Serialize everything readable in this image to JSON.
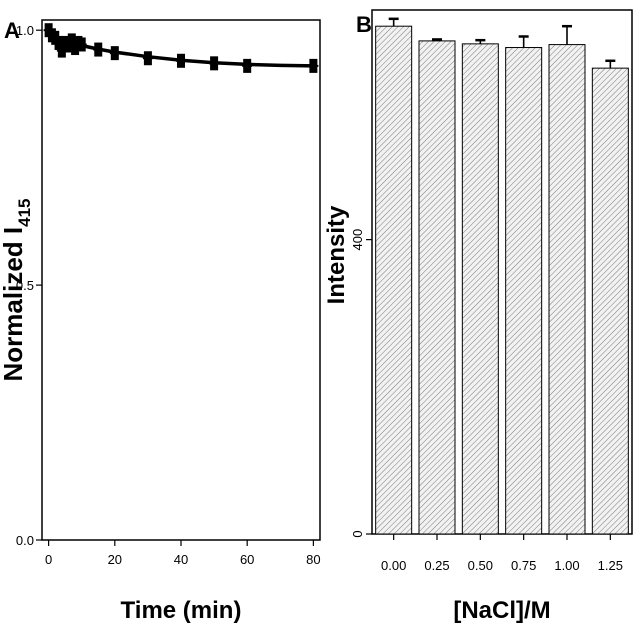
{
  "chart_data": [
    {
      "panel_label": "A",
      "type": "scatter",
      "xlabel": "Time (min)",
      "ylabel": "Normalized I",
      "ylabel_subscript": "415",
      "xlim": [
        -2,
        82
      ],
      "ylim": [
        0.0,
        1.02
      ],
      "xticks": [
        0,
        20,
        40,
        60,
        80
      ],
      "yticks": [
        0.0,
        0.5,
        1.0
      ],
      "ytick_labels": [
        "0.0",
        "0.5",
        "1.0"
      ],
      "grid": false,
      "series": [
        {
          "x": [
            0,
            1,
            2,
            3,
            4,
            5,
            6,
            7,
            8,
            9,
            10,
            15,
            20,
            30,
            40,
            50,
            60,
            80
          ],
          "y": [
            1.0,
            0.99,
            0.985,
            0.975,
            0.96,
            0.975,
            0.97,
            0.98,
            0.965,
            0.975,
            0.972,
            0.962,
            0.955,
            0.945,
            0.94,
            0.935,
            0.93,
            0.93
          ],
          "fit": {
            "x": [
              0,
              2,
              5,
              10,
              15,
              20,
              30,
              40,
              50,
              60,
              70,
              80
            ],
            "y": [
              0.995,
              0.988,
              0.98,
              0.97,
              0.963,
              0.957,
              0.948,
              0.941,
              0.936,
              0.933,
              0.931,
              0.93
            ]
          }
        }
      ]
    },
    {
      "panel_label": "B",
      "type": "bar",
      "xlabel": "[NaCl]/M",
      "ylabel": "Intensity",
      "categories": [
        "0.00",
        "0.25",
        "0.50",
        "0.75",
        "1.00",
        "1.25"
      ],
      "values": [
        690,
        670,
        666,
        661,
        665,
        633
      ],
      "errors": [
        10,
        2,
        5,
        15,
        25,
        10
      ],
      "ylim": [
        0,
        712
      ],
      "yticks": [
        0,
        400
      ],
      "ytick_labels": [
        "0",
        "400"
      ],
      "grid": false,
      "bar_fill": "hatched light grey"
    }
  ]
}
